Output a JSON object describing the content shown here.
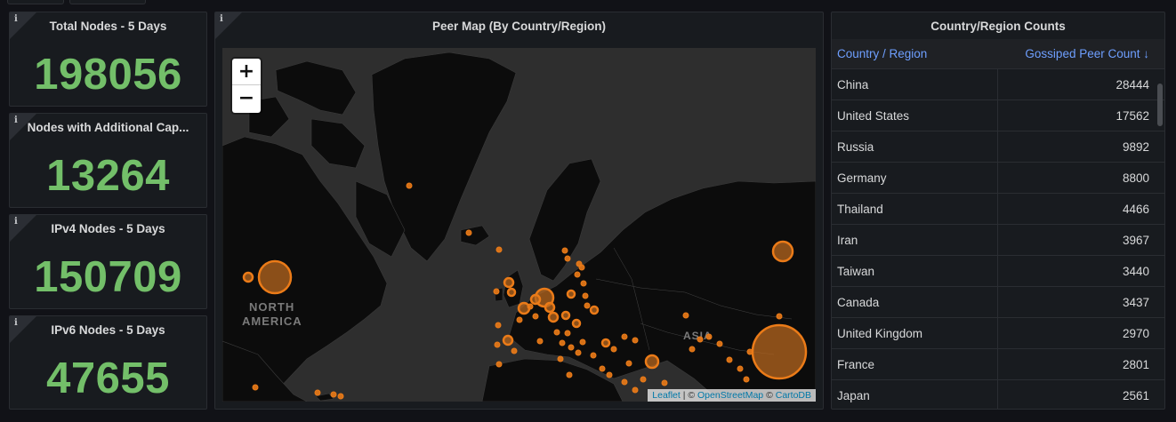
{
  "stats": [
    {
      "title": "Total Nodes - 5 Days",
      "value": "198056"
    },
    {
      "title": "Nodes with Additional Cap...",
      "value": "13264"
    },
    {
      "title": "IPv4 Nodes - 5 Days",
      "value": "150709"
    },
    {
      "title": "IPv6 Nodes - 5 Days",
      "value": "47655"
    }
  ],
  "info_icon": "i",
  "map": {
    "title": "Peer Map (By Country/Region)",
    "zoom_in": "+",
    "zoom_out": "−",
    "labels": {
      "north_america": [
        "NORTH",
        "AMERICA"
      ],
      "asia": "ASIA"
    },
    "attribution": {
      "leaflet": "Leaflet",
      "sep1": " | © ",
      "osm": "OpenStreetMap",
      "sep2": " © ",
      "carto": "CartoDB"
    },
    "marker_color": "#eb7b18"
  },
  "table": {
    "title": "Country/Region Counts",
    "col1": "Country / Region",
    "col2": "Gossiped Peer Count ↓",
    "rows": [
      {
        "country": "China",
        "count": "28444"
      },
      {
        "country": "United States",
        "count": "17562"
      },
      {
        "country": "Russia",
        "count": "9892"
      },
      {
        "country": "Germany",
        "count": "8800"
      },
      {
        "country": "Thailand",
        "count": "4466"
      },
      {
        "country": "Iran",
        "count": "3967"
      },
      {
        "country": "Taiwan",
        "count": "3440"
      },
      {
        "country": "Canada",
        "count": "3437"
      },
      {
        "country": "United Kingdom",
        "count": "2970"
      },
      {
        "country": "France",
        "count": "2801"
      },
      {
        "country": "Japan",
        "count": "2561"
      }
    ]
  }
}
